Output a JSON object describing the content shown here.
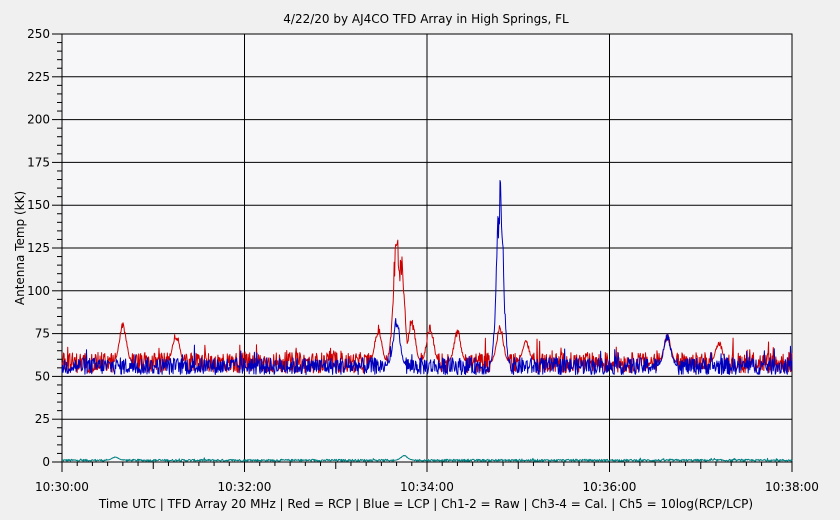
{
  "chart_data": {
    "type": "line",
    "title": "4/22/20  by  AJ4CO TFD Array  in  High Springs, FL",
    "xlabel": "Time UTC | TFD Array 20 MHz | Red = RCP | Blue = LCP | Ch1-2 = Raw | Ch3-4 = Cal. | Ch5 = 10log(RCP/LCP)",
    "ylabel": "Antenna Temp (kK)",
    "ylim": [
      0,
      250
    ],
    "xlim": [
      "10:30:00",
      "10:38:00"
    ],
    "x_ticks": [
      "10:30:00",
      "10:32:00",
      "10:34:00",
      "10:36:00",
      "10:38:00"
    ],
    "y_ticks": [
      0,
      25,
      50,
      75,
      100,
      125,
      150,
      175,
      200,
      225,
      250
    ],
    "grid": true,
    "series": [
      {
        "name": "RCP",
        "color": "#cc0000",
        "baseline": 58,
        "noise": 6,
        "events": [
          {
            "t": "10:30:40",
            "peak": 84
          },
          {
            "t": "10:31:15",
            "peak": 76
          },
          {
            "t": "10:33:28",
            "peak": 80
          },
          {
            "t": "10:33:40",
            "peak": 137
          },
          {
            "t": "10:33:43",
            "peak": 122
          },
          {
            "t": "10:33:50",
            "peak": 85
          },
          {
            "t": "10:34:02",
            "peak": 82
          },
          {
            "t": "10:34:20",
            "peak": 78
          },
          {
            "t": "10:34:48",
            "peak": 80
          },
          {
            "t": "10:35:05",
            "peak": 72
          },
          {
            "t": "10:36:38",
            "peak": 75
          },
          {
            "t": "10:37:12",
            "peak": 71
          }
        ]
      },
      {
        "name": "LCP",
        "color": "#0000bb",
        "baseline": 56,
        "noise": 5,
        "events": [
          {
            "t": "10:33:40",
            "peak": 85
          },
          {
            "t": "10:34:48",
            "peak": 165
          },
          {
            "t": "10:36:38",
            "peak": 76
          }
        ]
      },
      {
        "name": "Ch5",
        "color": "#008080",
        "baseline": 1,
        "noise": 0.6,
        "events": [
          {
            "t": "10:30:35",
            "peak": 3
          },
          {
            "t": "10:33:45",
            "peak": 4
          }
        ]
      }
    ]
  }
}
